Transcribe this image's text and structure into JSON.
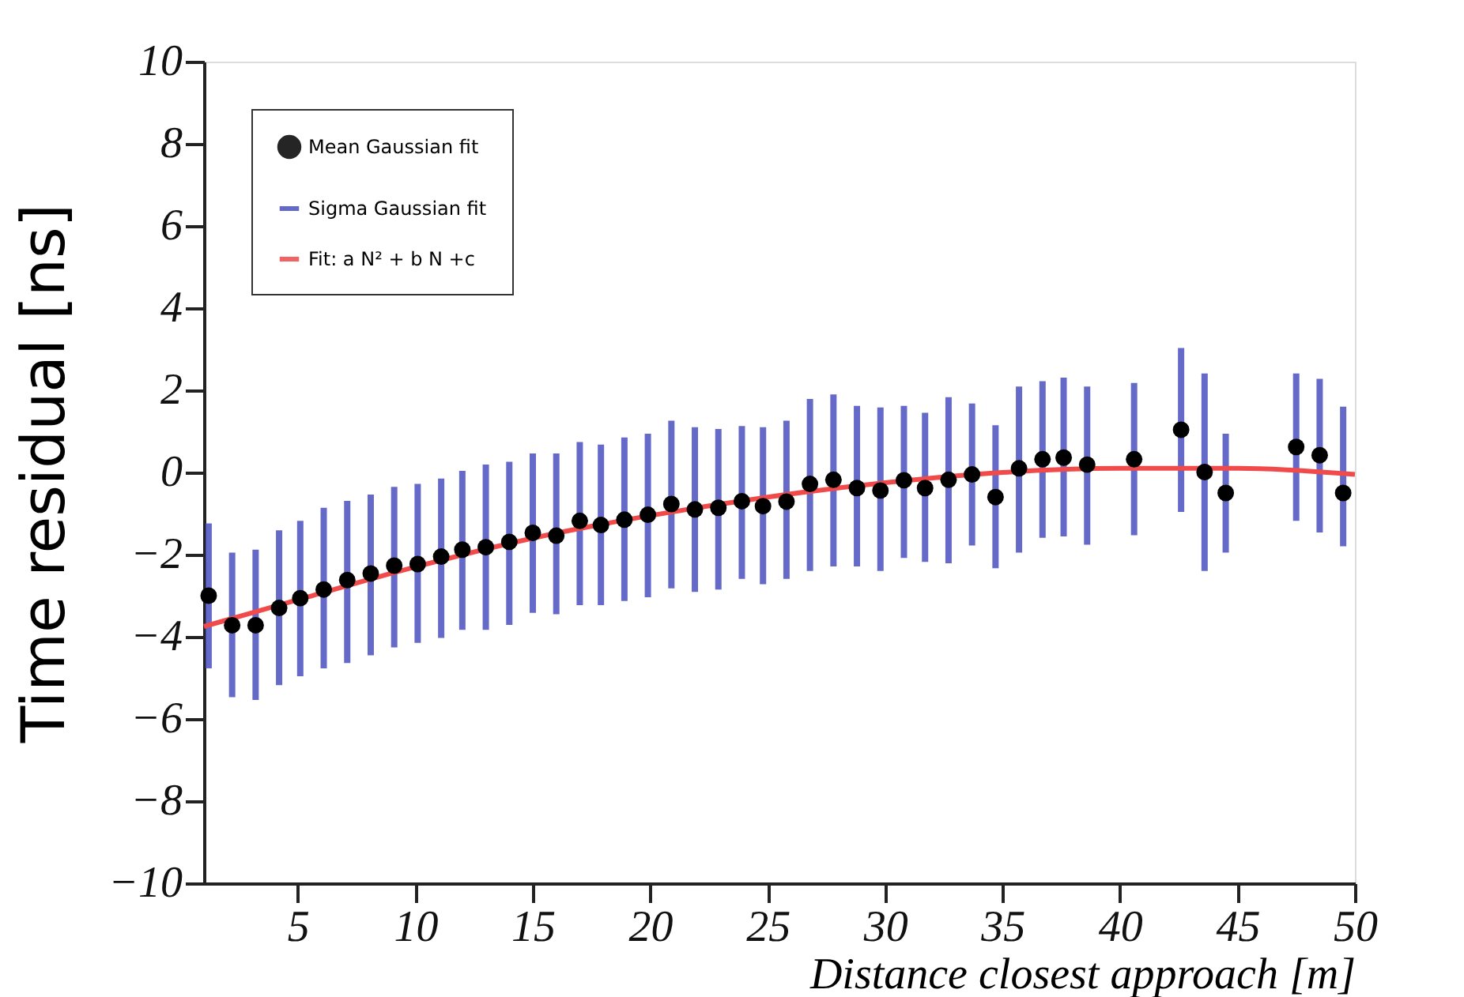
{
  "chart_data": {
    "type": "scatter",
    "xlabel": "Distance closest approach [m]",
    "ylabel": "Time residual [ns]",
    "x": [
      1.2,
      2.2,
      3.2,
      4.2,
      5.1,
      6.1,
      7.1,
      8.1,
      9.1,
      10.1,
      11.1,
      12.0,
      13.0,
      14.0,
      15.0,
      16.0,
      17.0,
      17.9,
      18.9,
      19.9,
      20.9,
      21.9,
      22.9,
      23.9,
      24.8,
      25.8,
      26.8,
      27.8,
      28.8,
      29.8,
      30.8,
      31.7,
      32.7,
      33.7,
      34.7,
      35.7,
      36.7,
      37.6,
      38.6,
      39.6,
      40.6,
      41.6,
      42.6,
      43.6,
      44.5,
      45.5,
      46.5,
      47.5,
      48.5,
      49.5
    ],
    "series": [
      {
        "name": "Mean Gaussian  fit",
        "type": "scatter",
        "color": "#000000",
        "marker": "circle",
        "values": [
          -3.0,
          -3.72,
          -3.72,
          -3.3,
          -3.06,
          -2.85,
          -2.62,
          -2.46,
          -2.27,
          -2.23,
          -2.05,
          -1.88,
          -1.82,
          -1.69,
          -1.47,
          -1.54,
          -1.18,
          -1.28,
          -1.15,
          -1.03,
          -0.77,
          -0.9,
          -0.86,
          -0.7,
          -0.82,
          -0.71,
          -0.28,
          -0.18,
          -0.38,
          -0.44,
          -0.19,
          -0.38,
          -0.18,
          -0.05,
          -0.6,
          0.1,
          0.32,
          0.36,
          0.19,
          null,
          0.32,
          null,
          1.04,
          0.01,
          -0.5,
          null,
          null,
          0.62,
          0.42,
          -0.5
        ],
        "errors": [
          [
            -4.77,
            -1.24
          ],
          [
            -5.47,
            -1.95
          ],
          [
            -5.54,
            -1.88
          ],
          [
            -5.18,
            -1.41
          ],
          [
            -4.96,
            -1.18
          ],
          [
            -4.77,
            -0.86
          ],
          [
            -4.64,
            -0.69
          ],
          [
            -4.45,
            -0.54
          ],
          [
            -4.26,
            -0.35
          ],
          [
            -4.15,
            -0.28
          ],
          [
            -4.03,
            -0.15
          ],
          [
            -3.83,
            0.04
          ],
          [
            -3.83,
            0.19
          ],
          [
            -3.71,
            0.26
          ],
          [
            -3.42,
            0.46
          ],
          [
            -3.45,
            0.46
          ],
          [
            -3.23,
            0.74
          ],
          [
            -3.23,
            0.68
          ],
          [
            -3.13,
            0.85
          ],
          [
            -3.04,
            0.94
          ],
          [
            -2.82,
            1.26
          ],
          [
            -2.91,
            1.1
          ],
          [
            -2.85,
            1.06
          ],
          [
            -2.59,
            1.13
          ],
          [
            -2.72,
            1.1
          ],
          [
            -2.59,
            1.26
          ],
          [
            -2.4,
            1.79
          ],
          [
            -2.29,
            1.9
          ],
          [
            -2.29,
            1.62
          ],
          [
            -2.4,
            1.58
          ],
          [
            -2.08,
            1.62
          ],
          [
            -2.18,
            1.45
          ],
          [
            -2.21,
            1.83
          ],
          [
            -1.78,
            1.68
          ],
          [
            -2.33,
            1.15
          ],
          [
            -1.95,
            2.09
          ],
          [
            -1.59,
            2.22
          ],
          [
            -1.56,
            2.31
          ],
          [
            -1.76,
            2.09
          ],
          null,
          [
            -1.53,
            2.18
          ],
          null,
          [
            -0.96,
            3.03
          ],
          [
            -2.4,
            2.41
          ],
          [
            -1.95,
            0.94
          ],
          null,
          null,
          [
            -1.18,
            2.41
          ],
          [
            -1.46,
            2.28
          ],
          [
            -1.8,
            1.6
          ]
        ]
      },
      {
        "name": "Sigma Gaussian fit",
        "type": "scatter",
        "color": "#4a50c0",
        "marker": "none",
        "values": [
          null,
          null,
          null,
          null,
          null,
          null,
          null,
          null,
          null,
          null,
          null,
          null,
          null,
          null,
          null,
          null,
          null,
          null,
          null,
          null,
          null,
          null,
          null,
          null,
          null,
          null,
          null,
          null,
          null,
          null,
          null,
          null,
          null,
          null,
          null,
          null,
          null,
          null,
          null,
          null,
          null,
          null,
          null,
          null,
          null,
          null,
          null,
          null,
          null,
          null
        ]
      },
      {
        "name": "Fit: a N² + b N +c",
        "type": "line",
        "color": "#f04a4a",
        "line_style": "solid",
        "x": [
          1,
          5,
          10,
          15,
          20,
          25,
          30,
          35,
          40,
          45,
          50
        ],
        "values": [
          -3.75,
          -3.1,
          -2.3,
          -1.6,
          -1.05,
          -0.6,
          -0.25,
          0.0,
          0.1,
          0.1,
          -0.05
        ]
      }
    ],
    "xlim": [
      1,
      50
    ],
    "xticks": [
      5,
      10,
      15,
      20,
      25,
      30,
      35,
      40,
      45,
      50
    ],
    "ylim": [
      -10,
      10
    ],
    "yticks": [
      -10,
      -8,
      -6,
      -4,
      -2,
      0,
      2,
      4,
      6,
      8,
      10
    ],
    "grid": false,
    "legend": "top left"
  }
}
